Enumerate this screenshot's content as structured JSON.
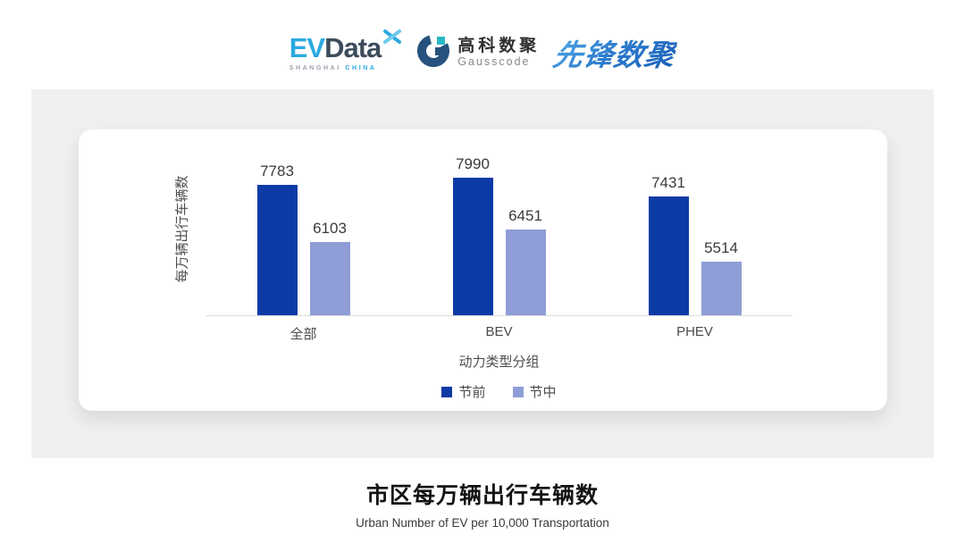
{
  "header": {
    "evdata": {
      "brand_primary": "EV",
      "brand_secondary": "Data",
      "tagline_city": "SHANGHAI",
      "tagline_country": "CHINA"
    },
    "gausscode": {
      "name_cn": "高科数聚",
      "name_en": "Gausscode"
    },
    "pioneer": {
      "name": "先锋数聚"
    }
  },
  "chart_data": {
    "type": "bar",
    "categories": [
      "全部",
      "BEV",
      "PHEV"
    ],
    "series": [
      {
        "name": "节前",
        "color": "#0d3ba6",
        "values": [
          7783,
          7990,
          7431
        ]
      },
      {
        "name": "节中",
        "color": "#8f9dd6",
        "values": [
          6103,
          6451,
          5514
        ]
      }
    ],
    "xlabel": "动力类型分组",
    "ylabel": "每万辆出行车辆数",
    "ylim": [
      3950,
      9000
    ],
    "bar_labels": true,
    "grid": false,
    "legend_position": "bottom",
    "axis_line_color": "#dcdcdc"
  },
  "footer": {
    "title": "市区每万辆出行车辆数",
    "subtitle": "Urban Number of EV per 10,000 Transportation"
  }
}
